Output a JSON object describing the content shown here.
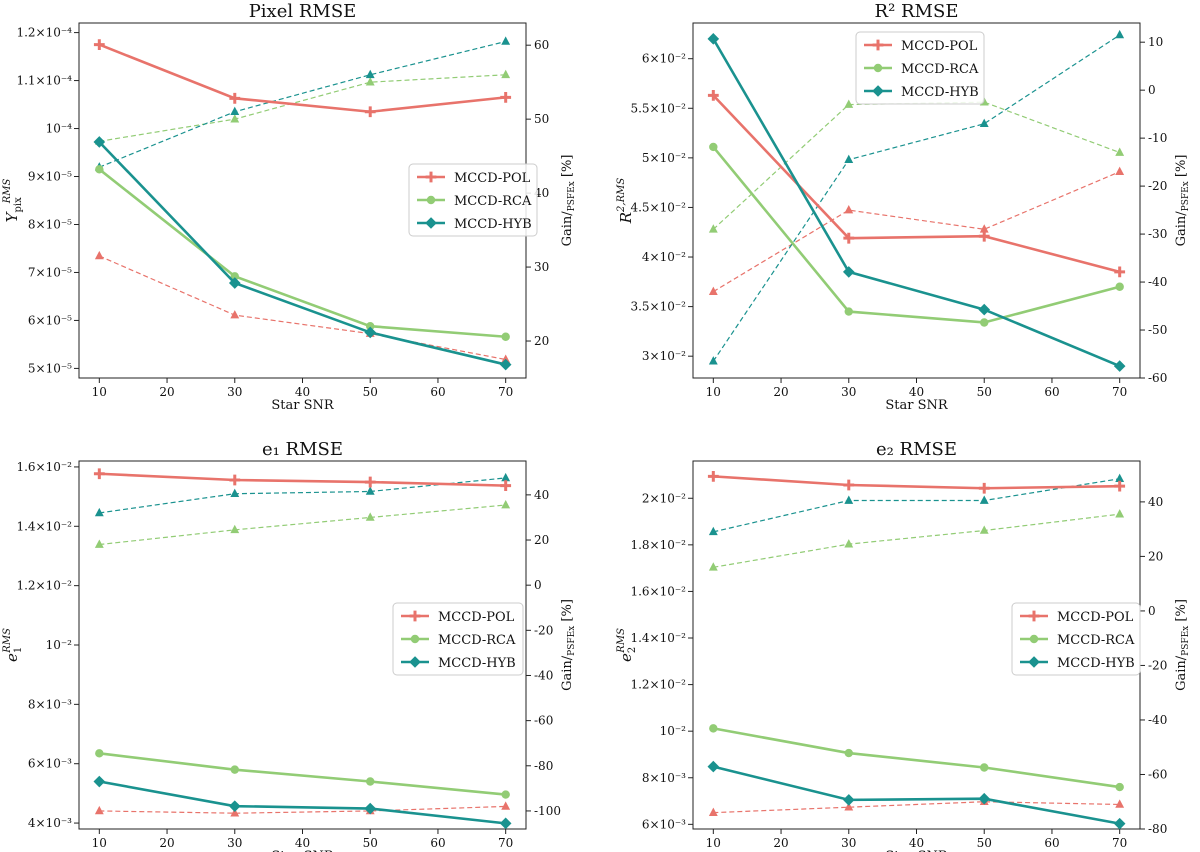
{
  "colors": {
    "pol": "#e8736b",
    "rca": "#92cc75",
    "hyb": "#1a928f"
  },
  "chart_data": [
    {
      "type": "line",
      "title": "Pixel RMSE",
      "xlabel": "Star SNR",
      "ylabel": "Y_pix^RMS",
      "y2label": "Gain/PSFEx [%]",
      "x": [
        10,
        30,
        50,
        70
      ],
      "xlim": [
        7,
        73
      ],
      "xticks": [
        10,
        20,
        30,
        40,
        50,
        60,
        70
      ],
      "ylim": [
        4.8e-05,
        0.000122
      ],
      "yticks": [
        5e-05,
        6e-05,
        7e-05,
        8e-05,
        9e-05,
        0.0001,
        0.00011,
        0.00012
      ],
      "ytick_labels": [
        "5×10⁻⁵",
        "6×10⁻⁵",
        "7×10⁻⁵",
        "8×10⁻⁵",
        "9×10⁻⁵",
        "10⁻⁴",
        "1.1×10⁻⁴",
        "1.2×10⁻⁴"
      ],
      "y2lim": [
        15,
        63
      ],
      "y2ticks": [
        20,
        30,
        40,
        50,
        60
      ],
      "legend": "center-right",
      "series": [
        {
          "name": "MCCD-POL",
          "key": "pol",
          "values": [
            0.0001175,
            0.0001063,
            0.0001035,
            0.0001065
          ],
          "gain": [
            31.5,
            23.5,
            21.0,
            17.5
          ]
        },
        {
          "name": "MCCD-RCA",
          "key": "rca",
          "values": [
            9.15e-05,
            6.92e-05,
            5.88e-05,
            5.66e-05
          ],
          "gain": [
            47.0,
            50.0,
            55.0,
            56.0
          ]
        },
        {
          "name": "MCCD-HYB",
          "key": "hyb",
          "values": [
            9.72e-05,
            6.78e-05,
            5.75e-05,
            5.08e-05
          ],
          "gain": [
            43.5,
            51.0,
            56.0,
            60.5
          ]
        }
      ]
    },
    {
      "type": "line",
      "title": "R² RMSE",
      "xlabel": "Star SNR",
      "ylabel": "R^2,RMS",
      "y2label": "Gain/PSFEx [%]",
      "x": [
        10,
        30,
        50,
        70
      ],
      "xlim": [
        7,
        73
      ],
      "xticks": [
        10,
        20,
        30,
        40,
        50,
        60,
        70
      ],
      "ylim": [
        0.0278,
        0.0636
      ],
      "yticks": [
        0.03,
        0.035,
        0.04,
        0.045,
        0.05,
        0.055,
        0.06
      ],
      "ytick_labels": [
        "3×10⁻²",
        "3.5×10⁻²",
        "4×10⁻²",
        "4.5×10⁻²",
        "5×10⁻²",
        "5.5×10⁻²",
        "6×10⁻²"
      ],
      "y2lim": [
        -60,
        14
      ],
      "y2ticks": [
        -60,
        -50,
        -40,
        -30,
        -20,
        -10,
        0,
        10
      ],
      "legend": "top-center",
      "series": [
        {
          "name": "MCCD-POL",
          "key": "pol",
          "values": [
            0.0563,
            0.0419,
            0.0421,
            0.0385
          ],
          "gain": [
            -42,
            -25,
            -29,
            -17
          ]
        },
        {
          "name": "MCCD-RCA",
          "key": "rca",
          "values": [
            0.0511,
            0.0345,
            0.0334,
            0.037
          ],
          "gain": [
            -29,
            -3,
            -2.5,
            -13
          ]
        },
        {
          "name": "MCCD-HYB",
          "key": "hyb",
          "values": [
            0.062,
            0.0385,
            0.0347,
            0.029
          ],
          "gain": [
            -56.5,
            -14.5,
            -7,
            11.5
          ]
        }
      ]
    },
    {
      "type": "line",
      "title": "e₁ RMSE",
      "xlabel": "Star SNR",
      "ylabel": "e_1^RMS",
      "y2label": "Gain/PSFEx [%]",
      "x": [
        10,
        30,
        50,
        70
      ],
      "xlim": [
        7,
        73
      ],
      "xticks": [
        10,
        20,
        30,
        40,
        50,
        60,
        70
      ],
      "ylim": [
        0.0038,
        0.0162
      ],
      "yticks": [
        0.004,
        0.006,
        0.008,
        0.01,
        0.012,
        0.014,
        0.016
      ],
      "ytick_labels": [
        "4×10⁻³",
        "6×10⁻³",
        "8×10⁻³",
        "10⁻²",
        "1.2×10⁻²",
        "1.4×10⁻²",
        "1.6×10⁻²"
      ],
      "y2lim": [
        -108,
        55
      ],
      "y2ticks": [
        -100,
        -80,
        -60,
        -40,
        -20,
        0,
        20,
        40
      ],
      "legend": "center-right",
      "series": [
        {
          "name": "MCCD-POL",
          "key": "pol",
          "values": [
            0.01577,
            0.01556,
            0.01549,
            0.01537
          ],
          "gain": [
            -100,
            -101,
            -100,
            -98
          ]
        },
        {
          "name": "MCCD-RCA",
          "key": "rca",
          "values": [
            0.00635,
            0.0058,
            0.0054,
            0.00496
          ],
          "gain": [
            18,
            24.5,
            30,
            35.5
          ]
        },
        {
          "name": "MCCD-HYB",
          "key": "hyb",
          "values": [
            0.0054,
            0.00457,
            0.00449,
            0.00399
          ],
          "gain": [
            32,
            40.5,
            41.5,
            47.5
          ]
        }
      ]
    },
    {
      "type": "line",
      "title": "e₂ RMSE",
      "xlabel": "Star SNR",
      "ylabel": "e_2^RMS",
      "y2label": "Gain/PSFEx [%]",
      "x": [
        10,
        30,
        50,
        70
      ],
      "xlim": [
        7,
        73
      ],
      "xticks": [
        10,
        20,
        30,
        40,
        50,
        60,
        70
      ],
      "ylim": [
        0.0058,
        0.0216
      ],
      "yticks": [
        0.006,
        0.008,
        0.01,
        0.012,
        0.014,
        0.016,
        0.018,
        0.02
      ],
      "ytick_labels": [
        "6×10⁻³",
        "8×10⁻³",
        "10⁻²",
        "1.2×10⁻²",
        "1.4×10⁻²",
        "1.6×10⁻²",
        "1.8×10⁻²",
        "2×10⁻²"
      ],
      "y2lim": [
        -80,
        55
      ],
      "y2ticks": [
        -80,
        -60,
        -40,
        -20,
        0,
        20,
        40
      ],
      "legend": "center-right",
      "series": [
        {
          "name": "MCCD-POL",
          "key": "pol",
          "values": [
            0.02094,
            0.02057,
            0.02043,
            0.02052
          ],
          "gain": [
            -74,
            -72,
            -70,
            -71
          ]
        },
        {
          "name": "MCCD-RCA",
          "key": "rca",
          "values": [
            0.01012,
            0.00906,
            0.00844,
            0.0076
          ],
          "gain": [
            16,
            24.5,
            29.5,
            35.5
          ]
        },
        {
          "name": "MCCD-HYB",
          "key": "hyb",
          "values": [
            0.00848,
            0.00705,
            0.0071,
            0.00603
          ],
          "gain": [
            29,
            40.5,
            40.5,
            48.5
          ]
        }
      ]
    }
  ]
}
